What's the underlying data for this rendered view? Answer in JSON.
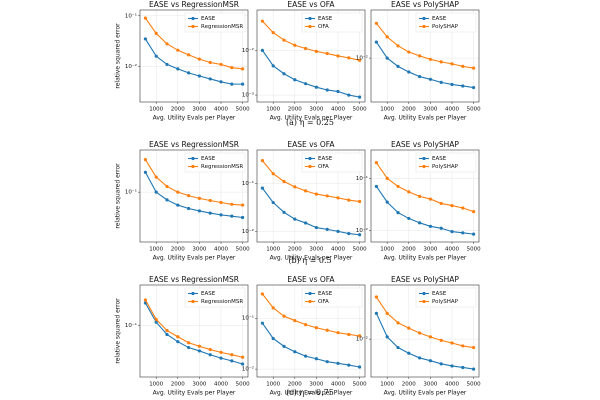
{
  "captions": [
    "(a) η = 0.25",
    "(b) η = 0.5",
    "(c) η = 0.75"
  ],
  "chart_data": [
    {
      "type": "line",
      "title": "EASE vs RegressionMSR",
      "xlabel": "Avg. Utility Evals per Player",
      "ylabel": "relative squared error",
      "log_y": true,
      "grid": true,
      "legend": "upper right",
      "x": [
        500,
        1000,
        1500,
        2000,
        2500,
        3000,
        3500,
        4000,
        4500,
        5000
      ],
      "xlim": [
        250,
        5250
      ],
      "xticks": [
        1000,
        2000,
        3000,
        4000,
        5000
      ],
      "ylim": [
        0.002,
        0.13
      ],
      "yticks": [
        {
          "value": 0.1,
          "label": "10⁻¹"
        },
        {
          "value": 0.01,
          "label": "10⁻²"
        }
      ],
      "series": [
        {
          "name": "EASE",
          "color": "#1f77b4",
          "values": [
            0.035,
            0.016,
            0.011,
            0.009,
            0.0075,
            0.0065,
            0.0057,
            0.005,
            0.0045,
            0.0045
          ]
        },
        {
          "name": "RegressionMSR",
          "color": "#ff7f0e",
          "values": [
            0.09,
            0.045,
            0.028,
            0.021,
            0.017,
            0.014,
            0.012,
            0.011,
            0.0095,
            0.009
          ]
        }
      ]
    },
    {
      "type": "line",
      "title": "EASE vs OFA",
      "xlabel": "Avg. Utility Evals per Player",
      "log_y": true,
      "grid": true,
      "legend": "upper right",
      "x": [
        500,
        1000,
        1500,
        2000,
        2500,
        3000,
        3500,
        4000,
        4500,
        5000
      ],
      "xlim": [
        250,
        5250
      ],
      "xticks": [
        1000,
        2000,
        3000,
        4000,
        5000
      ],
      "ylim": [
        0.0007,
        0.08
      ],
      "yticks": [
        {
          "value": 0.01,
          "label": "10⁻²"
        },
        {
          "value": 0.001,
          "label": "10⁻³"
        }
      ],
      "series": [
        {
          "name": "EASE",
          "color": "#1f77b4",
          "values": [
            0.01,
            0.0045,
            0.003,
            0.0022,
            0.0018,
            0.0015,
            0.0013,
            0.0012,
            0.001,
            0.0009
          ]
        },
        {
          "name": "OFA",
          "color": "#ff7f0e",
          "values": [
            0.045,
            0.025,
            0.017,
            0.013,
            0.011,
            0.0095,
            0.0085,
            0.0075,
            0.0068,
            0.006
          ]
        }
      ]
    },
    {
      "type": "line",
      "title": "EASE vs PolySHAP",
      "xlabel": "Avg. Utility Evals per Player",
      "log_y": true,
      "grid": true,
      "legend": "upper right",
      "x": [
        500,
        1000,
        1500,
        2000,
        2500,
        3000,
        3500,
        4000,
        4500,
        5000
      ],
      "xlim": [
        250,
        5250
      ],
      "xticks": [
        1000,
        2000,
        3000,
        4000,
        5000
      ],
      "ylim": [
        0.0015,
        0.08
      ],
      "yticks": [
        {
          "value": 0.01,
          "label": "10⁻²"
        }
      ],
      "series": [
        {
          "name": "EASE",
          "color": "#1f77b4",
          "values": [
            0.02,
            0.01,
            0.007,
            0.0055,
            0.0045,
            0.004,
            0.0035,
            0.0032,
            0.003,
            0.0028
          ]
        },
        {
          "name": "PolySHAP",
          "color": "#ff7f0e",
          "values": [
            0.045,
            0.025,
            0.017,
            0.013,
            0.011,
            0.0095,
            0.0085,
            0.0078,
            0.007,
            0.0065
          ]
        }
      ]
    },
    {
      "type": "line",
      "title": "EASE vs RegressionMSR",
      "xlabel": "Avg. Utility Evals per Player",
      "ylabel": "relative squared error",
      "log_y": true,
      "grid": true,
      "legend": "upper right",
      "x": [
        500,
        1000,
        1500,
        2000,
        2500,
        3000,
        3500,
        4000,
        4500,
        5000
      ],
      "xlim": [
        250,
        5250
      ],
      "xticks": [
        1000,
        2000,
        3000,
        4000,
        5000
      ],
      "ylim": [
        0.01,
        0.7
      ],
      "yticks": [
        {
          "value": 0.1,
          "label": "10⁻¹"
        }
      ],
      "series": [
        {
          "name": "EASE",
          "color": "#1f77b4",
          "values": [
            0.25,
            0.1,
            0.07,
            0.055,
            0.047,
            0.042,
            0.038,
            0.035,
            0.033,
            0.031
          ]
        },
        {
          "name": "RegressionMSR",
          "color": "#ff7f0e",
          "values": [
            0.45,
            0.2,
            0.13,
            0.1,
            0.085,
            0.075,
            0.068,
            0.062,
            0.057,
            0.055
          ]
        }
      ]
    },
    {
      "type": "line",
      "title": "EASE vs OFA",
      "xlabel": "Avg. Utility Evals per Player",
      "log_y": true,
      "grid": true,
      "legend": "upper right",
      "x": [
        500,
        1000,
        1500,
        2000,
        2500,
        3000,
        3500,
        4000,
        4500,
        5000
      ],
      "xlim": [
        250,
        5250
      ],
      "xticks": [
        1000,
        2000,
        3000,
        4000,
        5000
      ],
      "ylim": [
        0.006,
        0.5
      ],
      "yticks": [
        {
          "value": 0.1,
          "label": "10⁻¹"
        },
        {
          "value": 0.01,
          "label": "10⁻²"
        }
      ],
      "series": [
        {
          "name": "EASE",
          "color": "#1f77b4",
          "values": [
            0.08,
            0.04,
            0.025,
            0.018,
            0.015,
            0.012,
            0.011,
            0.01,
            0.009,
            0.0085
          ]
        },
        {
          "name": "OFA",
          "color": "#ff7f0e",
          "values": [
            0.3,
            0.16,
            0.11,
            0.085,
            0.07,
            0.06,
            0.055,
            0.05,
            0.045,
            0.042
          ]
        }
      ]
    },
    {
      "type": "line",
      "title": "EASE vs PolySHAP",
      "xlabel": "Avg. Utility Evals per Player",
      "log_y": true,
      "grid": true,
      "legend": "upper right",
      "x": [
        500,
        1000,
        1500,
        2000,
        2500,
        3000,
        3500,
        4000,
        4500,
        5000
      ],
      "xlim": [
        250,
        5250
      ],
      "xticks": [
        1000,
        2000,
        3000,
        4000,
        5000
      ],
      "ylim": [
        0.006,
        0.35
      ],
      "yticks": [
        {
          "value": 0.1,
          "label": "10⁻¹"
        },
        {
          "value": 0.01,
          "label": "10⁻²"
        }
      ],
      "series": [
        {
          "name": "EASE",
          "color": "#1f77b4",
          "values": [
            0.07,
            0.035,
            0.022,
            0.017,
            0.014,
            0.012,
            0.011,
            0.0095,
            0.009,
            0.0085
          ]
        },
        {
          "name": "PolySHAP",
          "color": "#ff7f0e",
          "values": [
            0.2,
            0.1,
            0.07,
            0.055,
            0.045,
            0.04,
            0.033,
            0.03,
            0.027,
            0.023
          ]
        }
      ]
    },
    {
      "type": "line",
      "title": "EASE vs RegressionMSR",
      "xlabel": "Avg. Utility Evals per Player",
      "ylabel": "relative squared error",
      "log_y": true,
      "grid": true,
      "legend": "upper right",
      "x": [
        500,
        1000,
        1500,
        2000,
        2500,
        3000,
        3500,
        4000,
        4500,
        5000
      ],
      "xlim": [
        250,
        5250
      ],
      "xticks": [
        1000,
        2000,
        3000,
        4000,
        5000
      ],
      "ylim": [
        0.02,
        0.35
      ],
      "yticks": [
        {
          "value": 0.1,
          "label": "10⁻¹"
        }
      ],
      "series": [
        {
          "name": "EASE",
          "color": "#1f77b4",
          "values": [
            0.2,
            0.11,
            0.075,
            0.06,
            0.05,
            0.045,
            0.04,
            0.036,
            0.033,
            0.03
          ]
        },
        {
          "name": "RegressionMSR",
          "color": "#ff7f0e",
          "values": [
            0.22,
            0.12,
            0.085,
            0.07,
            0.058,
            0.052,
            0.047,
            0.043,
            0.04,
            0.037
          ]
        }
      ]
    },
    {
      "type": "line",
      "title": "EASE vs OFA",
      "xlabel": "Avg. Utility Evals per Player",
      "log_y": true,
      "grid": true,
      "legend": "upper right",
      "x": [
        500,
        1000,
        1500,
        2000,
        2500,
        3000,
        3500,
        4000,
        4500,
        5000
      ],
      "xlim": [
        250,
        5250
      ],
      "xticks": [
        1000,
        2000,
        3000,
        4000,
        5000
      ],
      "ylim": [
        0.007,
        0.45
      ],
      "yticks": [
        {
          "value": 0.1,
          "label": "10⁻¹"
        },
        {
          "value": 0.01,
          "label": "10⁻²"
        }
      ],
      "series": [
        {
          "name": "EASE",
          "color": "#1f77b4",
          "values": [
            0.08,
            0.04,
            0.028,
            0.022,
            0.018,
            0.016,
            0.014,
            0.013,
            0.012,
            0.011
          ]
        },
        {
          "name": "OFA",
          "color": "#ff7f0e",
          "values": [
            0.3,
            0.16,
            0.11,
            0.09,
            0.075,
            0.065,
            0.058,
            0.052,
            0.048,
            0.045
          ]
        }
      ]
    },
    {
      "type": "line",
      "title": "EASE vs PolySHAP",
      "xlabel": "Avg. Utility Evals per Player",
      "log_y": true,
      "grid": true,
      "legend": "upper right",
      "x": [
        500,
        1000,
        1500,
        2000,
        2500,
        3000,
        3500,
        4000,
        4500,
        5000
      ],
      "xlim": [
        250,
        5250
      ],
      "xticks": [
        1000,
        2000,
        3000,
        4000,
        5000
      ],
      "ylim": [
        0.002,
        0.1
      ],
      "yticks": [
        {
          "value": 0.01,
          "label": "10⁻²"
        }
      ],
      "series": [
        {
          "name": "EASE",
          "color": "#1f77b4",
          "values": [
            0.03,
            0.011,
            0.007,
            0.0055,
            0.0045,
            0.004,
            0.0035,
            0.0032,
            0.003,
            0.0028
          ]
        },
        {
          "name": "PolySHAP",
          "color": "#ff7f0e",
          "values": [
            0.06,
            0.03,
            0.02,
            0.016,
            0.013,
            0.011,
            0.0095,
            0.0085,
            0.0075,
            0.007
          ]
        }
      ]
    }
  ]
}
